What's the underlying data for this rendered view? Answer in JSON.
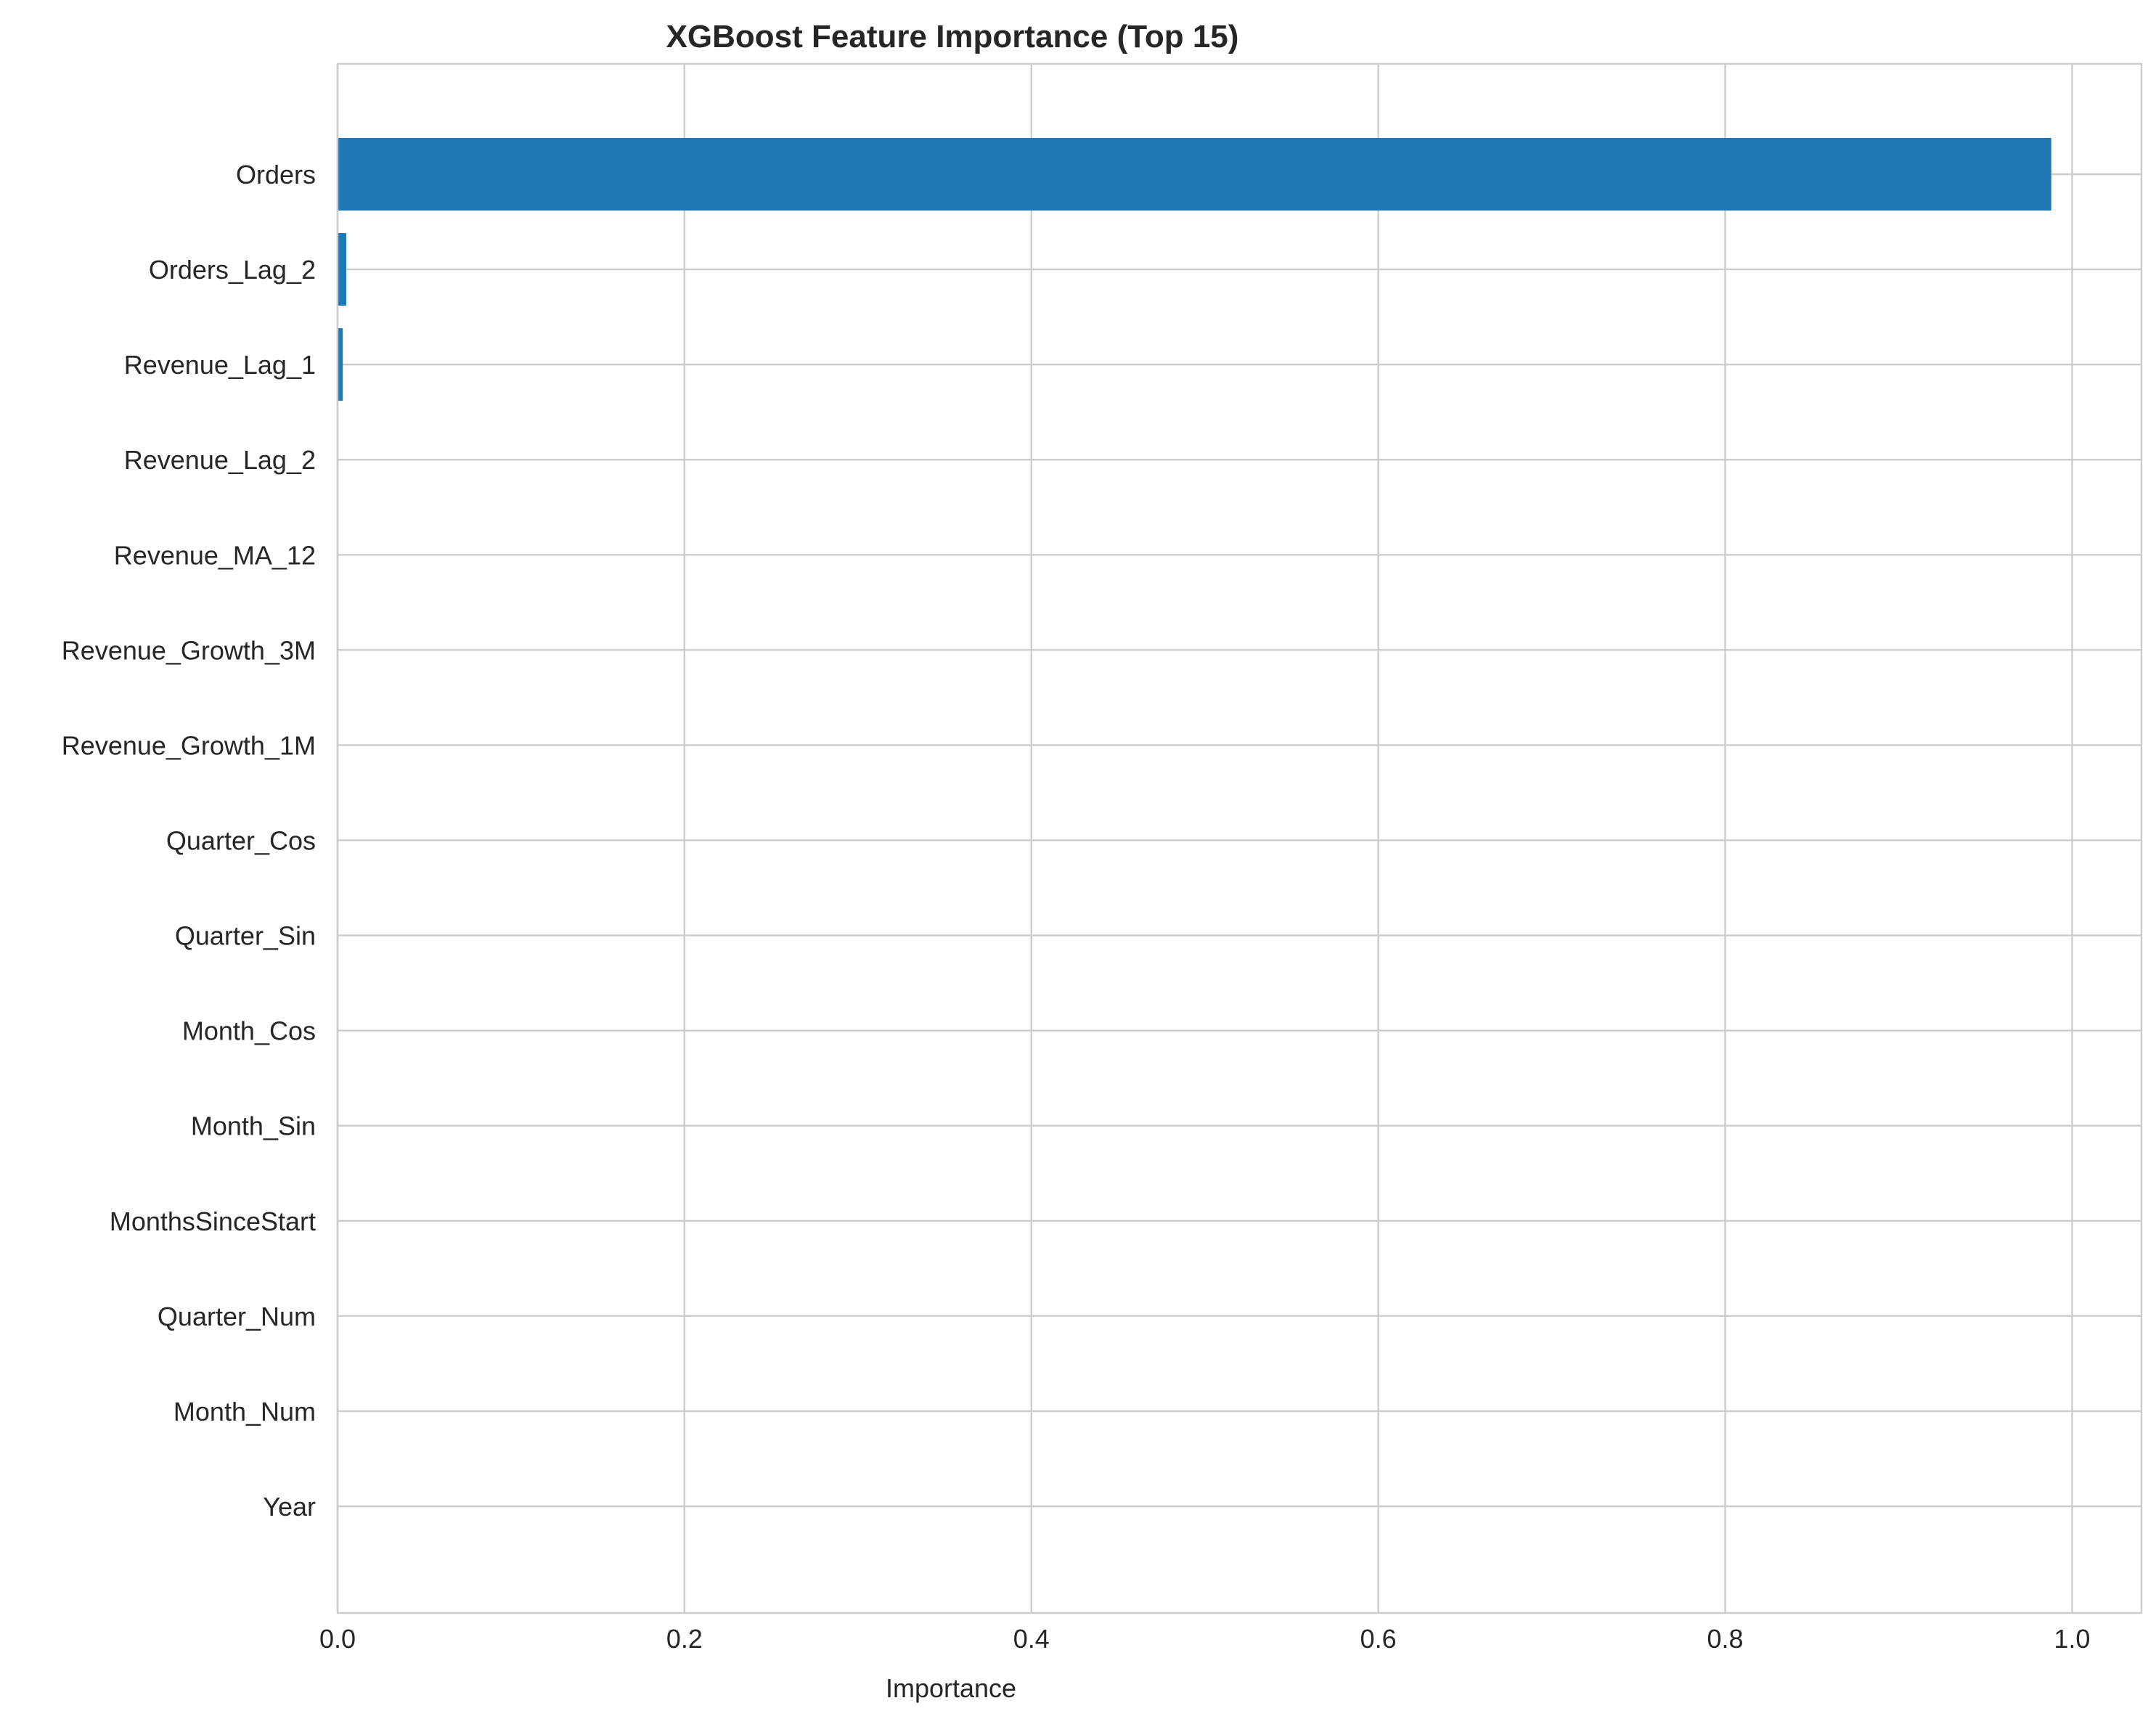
{
  "chart_data": {
    "type": "bar",
    "orientation": "horizontal",
    "title": "XGBoost Feature Importance (Top 15)",
    "xlabel": "Importance",
    "ylabel": "",
    "xlim": [
      0,
      1.04
    ],
    "xticks": [
      "0.0",
      "0.2",
      "0.4",
      "0.6",
      "0.8",
      "1.0"
    ],
    "grid": true,
    "legend": "none",
    "bar_color": "#1f77b4",
    "categories": [
      "Orders",
      "Orders_Lag_2",
      "Revenue_Lag_1",
      "Revenue_Lag_2",
      "Revenue_MA_12",
      "Revenue_Growth_3M",
      "Revenue_Growth_1M",
      "Quarter_Cos",
      "Quarter_Sin",
      "Month_Cos",
      "Month_Sin",
      "MonthsSinceStart",
      "Quarter_Num",
      "Month_Num",
      "Year"
    ],
    "values": [
      0.988,
      0.005,
      0.003,
      0,
      0,
      0,
      0,
      0,
      0,
      0,
      0,
      0,
      0,
      0,
      0
    ]
  }
}
